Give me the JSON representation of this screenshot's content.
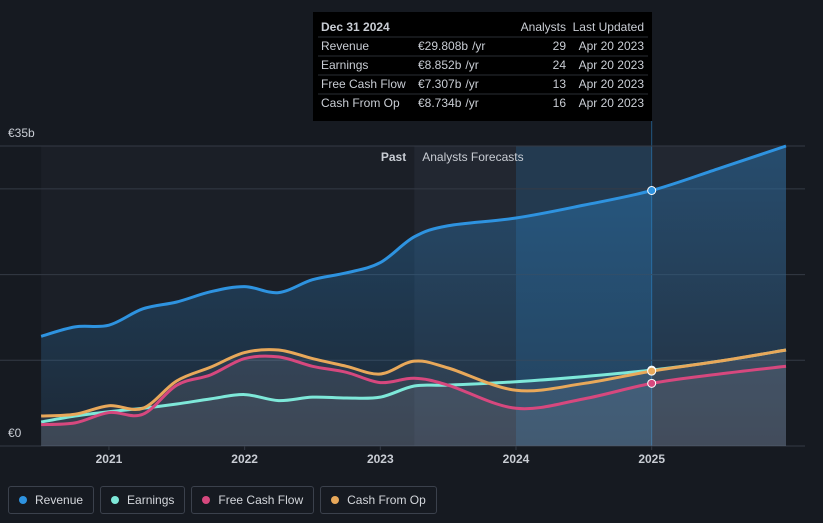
{
  "chart_data": {
    "type": "line",
    "x": [
      2020.5,
      2020.75,
      2021.0,
      2021.25,
      2021.5,
      2021.75,
      2022.0,
      2022.25,
      2022.5,
      2022.75,
      2023.0,
      2023.25,
      2023.5,
      2024.0,
      2024.5,
      2025.0,
      2025.5,
      2025.99
    ],
    "series": [
      {
        "name": "Revenue",
        "color": "#2e93e0",
        "values": [
          12.8,
          13.9,
          14.1,
          16.0,
          16.8,
          18.0,
          18.6,
          17.9,
          19.4,
          20.2,
          21.4,
          24.4,
          25.7,
          26.6,
          28.1,
          29.808,
          32.4,
          35.0
        ]
      },
      {
        "name": "Earnings",
        "color": "#7ee8d9",
        "values": [
          2.8,
          3.5,
          4.0,
          4.4,
          4.9,
          5.5,
          6.0,
          5.3,
          5.7,
          5.6,
          5.7,
          7.0,
          7.1,
          7.5,
          8.1,
          8.852,
          9.9,
          11.2
        ]
      },
      {
        "name": "Free Cash Flow",
        "color": "#d6487e",
        "values": [
          2.5,
          2.7,
          3.9,
          3.7,
          7.1,
          8.3,
          10.2,
          10.4,
          9.3,
          8.6,
          7.4,
          7.9,
          7.1,
          4.4,
          5.5,
          7.307,
          8.4,
          9.3
        ]
      },
      {
        "name": "Cash From Op",
        "color": "#e8a85a",
        "values": [
          3.5,
          3.7,
          4.7,
          4.4,
          7.6,
          9.2,
          10.9,
          11.2,
          10.2,
          9.3,
          8.4,
          9.9,
          9.1,
          6.5,
          7.3,
          8.734,
          9.9,
          11.2
        ]
      }
    ],
    "xlim": [
      2020.256,
      2026.13
    ],
    "xticks": [
      2021,
      2022,
      2023,
      2024,
      2025
    ],
    "ylim": [
      0,
      35
    ],
    "yticks": [
      {
        "value": 0,
        "label": "€0"
      },
      {
        "value": 10,
        "label": null
      },
      {
        "value": 20,
        "label": null
      },
      {
        "value": 30,
        "label": null
      },
      {
        "value": 35,
        "label": "€35b"
      }
    ],
    "grid": true,
    "past_label": "Past",
    "forecast_label": "Analysts Forecasts",
    "forecast_start": 2023.25,
    "highlight": [
      2024,
      2025
    ],
    "tooltip": {
      "title": "Dec 31 2024",
      "columns": [
        "Analysts",
        "Last Updated"
      ],
      "rows": [
        {
          "name": "Revenue",
          "value": "€29.808b",
          "unit": "/yr",
          "analysts": 29,
          "updated": "Apr 20 2023"
        },
        {
          "name": "Earnings",
          "value": "€8.852b",
          "unit": "/yr",
          "analysts": 24,
          "updated": "Apr 20 2023"
        },
        {
          "name": "Free Cash Flow",
          "value": "€7.307b",
          "unit": "/yr",
          "analysts": 13,
          "updated": "Apr 20 2023"
        },
        {
          "name": "Cash From Op",
          "value": "€8.734b",
          "unit": "/yr",
          "analysts": 16,
          "updated": "Apr 20 2023"
        }
      ]
    }
  }
}
